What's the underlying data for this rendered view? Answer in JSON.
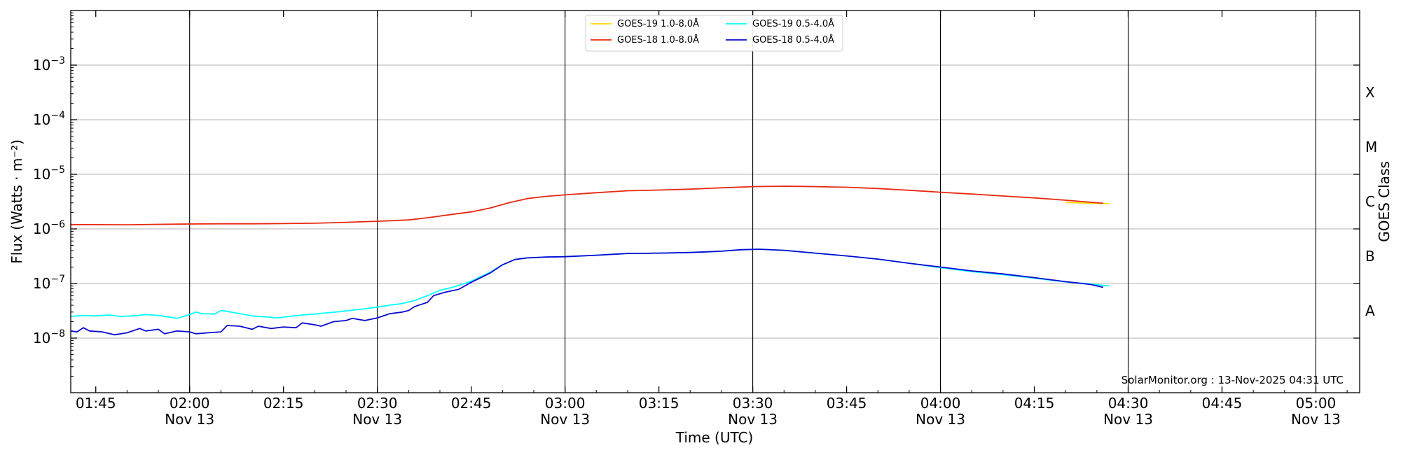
{
  "chart_data": {
    "type": "line",
    "xlabel": "Time (UTC)",
    "ylabel": "Flux (Watts · m⁻²)",
    "right_label": "GOES Class",
    "credit": "SolarMonitor.org : 13-Nov-2025 04:31 UTC",
    "log_y": true,
    "ylim": [
      1e-09,
      0.01
    ],
    "xlim": [
      "01:41",
      "05:07"
    ],
    "grid": "horizontal at decades, vertical at half-hours",
    "legend_position": "top-center",
    "y_ticks": [
      {
        "value": 1e-08,
        "base": "10",
        "exp": "−8"
      },
      {
        "value": 1e-07,
        "base": "10",
        "exp": "−7"
      },
      {
        "value": 1e-06,
        "base": "10",
        "exp": "−6"
      },
      {
        "value": 1e-05,
        "base": "10",
        "exp": "−5"
      },
      {
        "value": 0.0001,
        "base": "10",
        "exp": "−4"
      },
      {
        "value": 0.001,
        "base": "10",
        "exp": "−3"
      }
    ],
    "x_ticks": [
      {
        "time": "01:45",
        "label": "01:45",
        "sub": ""
      },
      {
        "time": "02:00",
        "label": "02:00",
        "sub": "Nov 13"
      },
      {
        "time": "02:15",
        "label": "02:15",
        "sub": ""
      },
      {
        "time": "02:30",
        "label": "02:30",
        "sub": "Nov 13"
      },
      {
        "time": "02:45",
        "label": "02:45",
        "sub": ""
      },
      {
        "time": "03:00",
        "label": "03:00",
        "sub": "Nov 13"
      },
      {
        "time": "03:15",
        "label": "03:15",
        "sub": ""
      },
      {
        "time": "03:30",
        "label": "03:30",
        "sub": "Nov 13"
      },
      {
        "time": "03:45",
        "label": "03:45",
        "sub": ""
      },
      {
        "time": "04:00",
        "label": "04:00",
        "sub": "Nov 13"
      },
      {
        "time": "04:15",
        "label": "04:15",
        "sub": ""
      },
      {
        "time": "04:30",
        "label": "04:30",
        "sub": "Nov 13"
      },
      {
        "time": "04:45",
        "label": "04:45",
        "sub": ""
      },
      {
        "time": "05:00",
        "label": "05:00",
        "sub": "Nov 13"
      }
    ],
    "goes_classes": [
      {
        "label": "A",
        "value": 3.16e-08
      },
      {
        "label": "B",
        "value": 3.16e-07
      },
      {
        "label": "C",
        "value": 3.16e-06
      },
      {
        "label": "M",
        "value": 3.16e-05
      },
      {
        "label": "X",
        "value": 0.000316
      }
    ],
    "series": [
      {
        "name": "GOES-19 1.0-8.0Å",
        "color": "#ffd700",
        "points": [
          [
            "04:20",
            3.05e-06
          ],
          [
            "04:24",
            2.95e-06
          ],
          [
            "04:27",
            2.9e-06
          ]
        ]
      },
      {
        "name": "GOES-18 1.0-8.0Å",
        "color": "#e8280f",
        "points": [
          [
            "01:41",
            1.2e-06
          ],
          [
            "01:50",
            1.19e-06
          ],
          [
            "01:55",
            1.21e-06
          ],
          [
            "02:00",
            1.23e-06
          ],
          [
            "02:05",
            1.24e-06
          ],
          [
            "02:10",
            1.24e-06
          ],
          [
            "02:15",
            1.25e-06
          ],
          [
            "02:20",
            1.27e-06
          ],
          [
            "02:25",
            1.32e-06
          ],
          [
            "02:30",
            1.38e-06
          ],
          [
            "02:35",
            1.46e-06
          ],
          [
            "02:38",
            1.6e-06
          ],
          [
            "02:42",
            1.85e-06
          ],
          [
            "02:45",
            2.05e-06
          ],
          [
            "02:48",
            2.4e-06
          ],
          [
            "02:51",
            3e-06
          ],
          [
            "02:54",
            3.6e-06
          ],
          [
            "02:57",
            3.95e-06
          ],
          [
            "03:00",
            4.2e-06
          ],
          [
            "03:05",
            4.6e-06
          ],
          [
            "03:10",
            5e-06
          ],
          [
            "03:15",
            5.15e-06
          ],
          [
            "03:20",
            5.35e-06
          ],
          [
            "03:25",
            5.65e-06
          ],
          [
            "03:30",
            5.95e-06
          ],
          [
            "03:35",
            6.05e-06
          ],
          [
            "03:40",
            5.95e-06
          ],
          [
            "03:45",
            5.8e-06
          ],
          [
            "03:50",
            5.5e-06
          ],
          [
            "03:55",
            5.1e-06
          ],
          [
            "04:00",
            4.7e-06
          ],
          [
            "04:05",
            4.35e-06
          ],
          [
            "04:10",
            4e-06
          ],
          [
            "04:15",
            3.7e-06
          ],
          [
            "04:20",
            3.35e-06
          ],
          [
            "04:26",
            2.95e-06
          ]
        ]
      },
      {
        "name": "GOES-19 0.5-4.0Å",
        "color": "#00ffff",
        "points": [
          [
            "01:41",
            2.5e-08
          ],
          [
            "01:43",
            2.6e-08
          ],
          [
            "01:45",
            2.55e-08
          ],
          [
            "01:47",
            2.65e-08
          ],
          [
            "01:49",
            2.5e-08
          ],
          [
            "01:51",
            2.55e-08
          ],
          [
            "01:53",
            2.7e-08
          ],
          [
            "01:55",
            2.6e-08
          ],
          [
            "01:57",
            2.4e-08
          ],
          [
            "01:58",
            2.3e-08
          ],
          [
            "02:00",
            2.7e-08
          ],
          [
            "02:01",
            3e-08
          ],
          [
            "02:02",
            2.8e-08
          ],
          [
            "02:04",
            2.75e-08
          ],
          [
            "02:05",
            3.2e-08
          ],
          [
            "02:06",
            3.1e-08
          ],
          [
            "02:08",
            2.8e-08
          ],
          [
            "02:10",
            2.55e-08
          ],
          [
            "02:12",
            2.45e-08
          ],
          [
            "02:14",
            2.35e-08
          ],
          [
            "02:16",
            2.5e-08
          ],
          [
            "02:18",
            2.65e-08
          ],
          [
            "02:20",
            2.75e-08
          ],
          [
            "02:22",
            2.9e-08
          ],
          [
            "02:24",
            3.05e-08
          ],
          [
            "02:26",
            3.25e-08
          ],
          [
            "02:28",
            3.45e-08
          ],
          [
            "02:30",
            3.7e-08
          ],
          [
            "02:32",
            4e-08
          ],
          [
            "02:34",
            4.3e-08
          ],
          [
            "02:36",
            4.9e-08
          ],
          [
            "02:38",
            6e-08
          ],
          [
            "02:40",
            7.5e-08
          ],
          [
            "02:42",
            8.5e-08
          ],
          [
            "02:45",
            1.1e-07
          ],
          [
            "02:48",
            1.6e-07
          ],
          [
            "02:50",
            2.2e-07
          ],
          [
            "02:52",
            2.75e-07
          ],
          [
            "02:54",
            2.95e-07
          ],
          [
            "02:57",
            3.05e-07
          ],
          [
            "03:00",
            3.1e-07
          ],
          [
            "03:05",
            3.3e-07
          ],
          [
            "03:10",
            3.55e-07
          ],
          [
            "03:15",
            3.6e-07
          ],
          [
            "03:20",
            3.7e-07
          ],
          [
            "03:25",
            3.9e-07
          ],
          [
            "03:28",
            4.15e-07
          ],
          [
            "03:31",
            4.25e-07
          ],
          [
            "03:35",
            4.05e-07
          ],
          [
            "03:40",
            3.6e-07
          ],
          [
            "03:45",
            3.2e-07
          ],
          [
            "03:50",
            2.8e-07
          ],
          [
            "03:55",
            2.35e-07
          ],
          [
            "04:00",
            1.95e-07
          ],
          [
            "04:05",
            1.65e-07
          ],
          [
            "04:10",
            1.45e-07
          ],
          [
            "04:15",
            1.25e-07
          ],
          [
            "04:20",
            1.07e-07
          ],
          [
            "04:24",
            9.8e-08
          ],
          [
            "04:27",
            9e-08
          ]
        ]
      },
      {
        "name": "GOES-18 0.5-4.0Å",
        "color": "#0a0ad0",
        "points": [
          [
            "01:41",
            1.35e-08
          ],
          [
            "01:42",
            1.3e-08
          ],
          [
            "01:43",
            1.55e-08
          ],
          [
            "01:44",
            1.35e-08
          ],
          [
            "01:46",
            1.3e-08
          ],
          [
            "01:48",
            1.15e-08
          ],
          [
            "01:50",
            1.25e-08
          ],
          [
            "01:52",
            1.5e-08
          ],
          [
            "01:53",
            1.35e-08
          ],
          [
            "01:55",
            1.45e-08
          ],
          [
            "01:56",
            1.2e-08
          ],
          [
            "01:58",
            1.35e-08
          ],
          [
            "02:00",
            1.3e-08
          ],
          [
            "02:01",
            1.2e-08
          ],
          [
            "02:03",
            1.25e-08
          ],
          [
            "02:05",
            1.3e-08
          ],
          [
            "02:06",
            1.7e-08
          ],
          [
            "02:08",
            1.65e-08
          ],
          [
            "02:10",
            1.45e-08
          ],
          [
            "02:11",
            1.65e-08
          ],
          [
            "02:13",
            1.5e-08
          ],
          [
            "02:15",
            1.6e-08
          ],
          [
            "02:17",
            1.55e-08
          ],
          [
            "02:18",
            1.9e-08
          ],
          [
            "02:20",
            1.75e-08
          ],
          [
            "02:21",
            1.65e-08
          ],
          [
            "02:23",
            2e-08
          ],
          [
            "02:25",
            2.1e-08
          ],
          [
            "02:26",
            2.3e-08
          ],
          [
            "02:28",
            2.1e-08
          ],
          [
            "02:30",
            2.35e-08
          ],
          [
            "02:32",
            2.8e-08
          ],
          [
            "02:34",
            3e-08
          ],
          [
            "02:35",
            3.2e-08
          ],
          [
            "02:36",
            3.8e-08
          ],
          [
            "02:38",
            4.5e-08
          ],
          [
            "02:39",
            6e-08
          ],
          [
            "02:41",
            7e-08
          ],
          [
            "02:43",
            7.8e-08
          ],
          [
            "02:45",
            1.05e-07
          ],
          [
            "02:48",
            1.55e-07
          ],
          [
            "02:50",
            2.2e-07
          ],
          [
            "02:52",
            2.75e-07
          ],
          [
            "02:54",
            2.95e-07
          ],
          [
            "02:57",
            3.05e-07
          ],
          [
            "03:00",
            3.1e-07
          ],
          [
            "03:05",
            3.3e-07
          ],
          [
            "03:10",
            3.55e-07
          ],
          [
            "03:15",
            3.6e-07
          ],
          [
            "03:20",
            3.7e-07
          ],
          [
            "03:25",
            3.9e-07
          ],
          [
            "03:28",
            4.15e-07
          ],
          [
            "03:31",
            4.25e-07
          ],
          [
            "03:35",
            4.05e-07
          ],
          [
            "03:40",
            3.6e-07
          ],
          [
            "03:45",
            3.2e-07
          ],
          [
            "03:50",
            2.8e-07
          ],
          [
            "03:55",
            2.35e-07
          ],
          [
            "04:00",
            2e-07
          ],
          [
            "04:05",
            1.7e-07
          ],
          [
            "04:10",
            1.5e-07
          ],
          [
            "04:15",
            1.28e-07
          ],
          [
            "04:20",
            1.08e-07
          ],
          [
            "04:24",
            9.6e-08
          ],
          [
            "04:26",
            8.5e-08
          ]
        ]
      }
    ]
  }
}
